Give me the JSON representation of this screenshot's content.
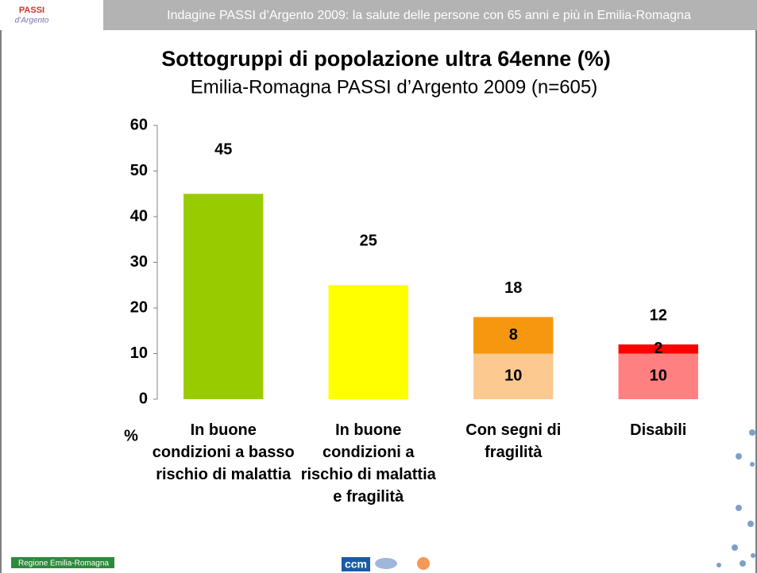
{
  "header": {
    "text": "Indagine PASSI d’Argento 2009: la salute delle persone con 65 anni e più in Emilia-Romagna",
    "logo_top": "PASSI",
    "logo_sub": "d’Argento"
  },
  "footer": {
    "region": "Regione Emilia-Romagna",
    "ccm": "ccm"
  },
  "chart_data": {
    "type": "stacked_bar",
    "title": "Sottogruppi di popolazione ultra 64enne (%)",
    "subtitle": "Emilia-Romagna PASSI d’Argento 2009  (n=605)",
    "y_label": "%",
    "categories": [
      "In buone condizioni a basso rischio di malattia",
      "In buone condizioni a rischio di malattia e fragilità",
      "Con segni di fragilità",
      "Disabili"
    ],
    "series": [
      {
        "colors": [
          "#99cc00",
          "#ffff00",
          "#fcc991",
          "#ff8080"
        ],
        "values": [
          45,
          25,
          10,
          10
        ]
      },
      {
        "colors": [
          null,
          null,
          "#f7960f",
          "#ff0000"
        ],
        "values": [
          null,
          null,
          8,
          2
        ]
      }
    ],
    "totals": [
      null,
      null,
      18,
      12
    ],
    "ylim": [
      0,
      60
    ],
    "yticks": [
      0,
      10,
      20,
      30,
      40,
      50,
      60
    ],
    "grid": false
  }
}
